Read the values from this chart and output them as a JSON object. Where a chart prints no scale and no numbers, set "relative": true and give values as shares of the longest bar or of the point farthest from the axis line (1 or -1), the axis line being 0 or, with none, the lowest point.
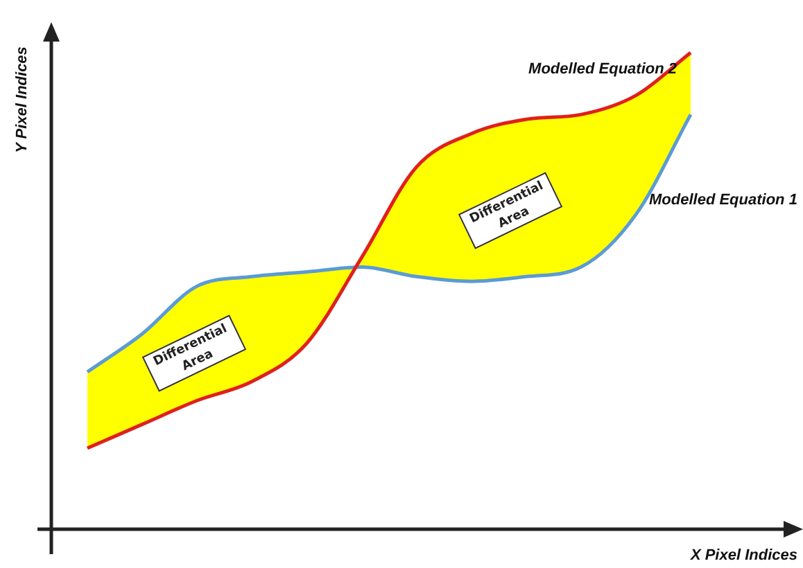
{
  "chart_data": {
    "type": "line",
    "relative": true,
    "xlabel": "X Pixel Indices",
    "ylabel": "Y Pixel Indices",
    "categories": [
      null,
      null,
      null,
      null,
      null,
      null,
      null,
      null,
      null,
      null,
      null,
      null
    ],
    "series": [
      {
        "name": "Modelled Equation 1",
        "color": "#5b9bd5",
        "values": [
          0.33,
          0.41,
          0.51,
          0.53,
          0.54,
          0.55,
          0.53,
          0.52,
          0.53,
          0.55,
          0.66,
          0.87
        ]
      },
      {
        "name": "Modelled Equation 2",
        "color": "#e0201b",
        "values": [
          0.17,
          0.22,
          0.27,
          0.31,
          0.39,
          0.57,
          0.76,
          0.83,
          0.86,
          0.87,
          0.91,
          1
        ]
      }
    ],
    "annotations": [
      "Differential Area",
      "Differential Area"
    ],
    "legend": false,
    "marker": "none"
  }
}
